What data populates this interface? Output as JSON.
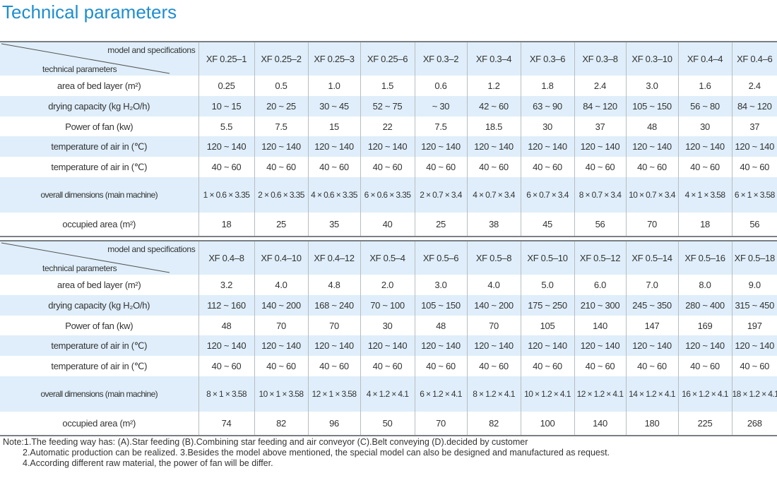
{
  "title": "Technical parameters",
  "corner": {
    "top": "model and specifications",
    "bottom": "technical parameters"
  },
  "row_labels": {
    "area": "area of bed layer (m²)",
    "capacity": "drying capacity (kg H₂O/h)",
    "fan": "Power of fan (kw)",
    "temp_in": "temperature of air in (℃)",
    "temp_out": "temperature of air in (℃)",
    "dims": "overall dimensions (main machine)",
    "occupied": "occupied area (m²)"
  },
  "table1": {
    "models": [
      "XF 0.25–1",
      "XF 0.25–2",
      "XF 0.25–3",
      "XF 0.25–6",
      "XF 0.3–2",
      "XF 0.3–4",
      "XF 0.3–6",
      "XF 0.3–8",
      "XF 0.3–10",
      "XF 0.4–4",
      "XF 0.4–6"
    ],
    "area": [
      "0.25",
      "0.5",
      "1.0",
      "1.5",
      "0.6",
      "1.2",
      "1.8",
      "2.4",
      "3.0",
      "1.6",
      "2.4"
    ],
    "capacity": [
      "10 ~ 15",
      "20 ~ 25",
      "30 ~ 45",
      "52 ~ 75",
      "~ 30",
      "42 ~ 60",
      "63 ~ 90",
      "84 ~ 120",
      "105 ~ 150",
      "56 ~ 80",
      "84 ~ 120"
    ],
    "fan": [
      "5.5",
      "7.5",
      "15",
      "22",
      "7.5",
      "18.5",
      "30",
      "37",
      "48",
      "30",
      "37"
    ],
    "temp_in": [
      "120 ~ 140",
      "120 ~ 140",
      "120 ~ 140",
      "120 ~ 140",
      "120 ~ 140",
      "120 ~ 140",
      "120 ~ 140",
      "120 ~ 140",
      "120 ~ 140",
      "120 ~ 140",
      "120 ~ 140"
    ],
    "temp_out": [
      "40 ~ 60",
      "40 ~ 60",
      "40 ~ 60",
      "40 ~ 60",
      "40 ~ 60",
      "40 ~ 60",
      "40 ~ 60",
      "40 ~ 60",
      "40 ~ 60",
      "40 ~ 60",
      "40 ~ 60"
    ],
    "dims": [
      "1 × 0.6 × 3.35",
      "2 × 0.6 × 3.35",
      "4 × 0.6 × 3.35",
      "6 × 0.6 × 3.35",
      "2 × 0.7 × 3.4",
      "4 × 0.7 × 3.4",
      "6 × 0.7 × 3.4",
      "8 × 0.7 × 3.4",
      "10 × 0.7 × 3.4",
      "4 × 1 × 3.58",
      "6 × 1 × 3.58"
    ],
    "occupied": [
      "18",
      "25",
      "35",
      "40",
      "25",
      "38",
      "45",
      "56",
      "70",
      "18",
      "56"
    ]
  },
  "table2": {
    "models": [
      "XF 0.4–8",
      "XF 0.4–10",
      "XF 0.4–12",
      "XF 0.5–4",
      "XF 0.5–6",
      "XF 0.5–8",
      "XF 0.5–10",
      "XF 0.5–12",
      "XF 0.5–14",
      "XF 0.5–16",
      "XF 0.5–18"
    ],
    "area": [
      "3.2",
      "4.0",
      "4.8",
      "2.0",
      "3.0",
      "4.0",
      "5.0",
      "6.0",
      "7.0",
      "8.0",
      "9.0"
    ],
    "capacity": [
      "112 ~ 160",
      "140 ~ 200",
      "168 ~ 240",
      "70 ~ 100",
      "105 ~ 150",
      "140 ~ 200",
      "175 ~ 250",
      "210 ~ 300",
      "245 ~ 350",
      "280 ~ 400",
      "315 ~ 450"
    ],
    "fan": [
      "48",
      "70",
      "70",
      "30",
      "48",
      "70",
      "105",
      "140",
      "147",
      "169",
      "197"
    ],
    "temp_in": [
      "120 ~ 140",
      "120 ~ 140",
      "120 ~ 140",
      "120 ~ 140",
      "120 ~ 140",
      "120 ~ 140",
      "120 ~ 140",
      "120 ~ 140",
      "120 ~ 140",
      "120 ~ 140",
      "120 ~ 140"
    ],
    "temp_out": [
      "40 ~ 60",
      "40 ~ 60",
      "40 ~ 60",
      "40 ~ 60",
      "40 ~ 60",
      "40 ~ 60",
      "40 ~ 60",
      "40 ~ 60",
      "40 ~ 60",
      "40 ~ 60",
      "40 ~ 60"
    ],
    "dims": [
      "8 × 1 × 3.58",
      "10 × 1 × 3.58",
      "12 × 1 × 3.58",
      "4 × 1.2 × 4.1",
      "6 × 1.2 × 4.1",
      "8 × 1.2 × 4.1",
      "10 × 1.2 × 4.1",
      "12 × 1.2 × 4.1",
      "14 × 1.2 × 4.1",
      "16 × 1.2 × 4.1",
      "18 × 1.2 × 4.1"
    ],
    "occupied": [
      "74",
      "82",
      "96",
      "50",
      "70",
      "82",
      "100",
      "140",
      "180",
      "225",
      "268"
    ]
  },
  "notes": [
    "Note:1.The feeding way has: (A).Star feeding  (B).Combining star feeding and air conveyor  (C).Belt conveying  (D).decided by customer",
    "2.Automatic production can be realized. 3.Besides the model above mentioned, the special model can also be designed and manufactured as request.",
    "4.According different raw material, the power of fan will be differ."
  ],
  "colors": {
    "title": "#1f8dcf",
    "shade": "#dfeefa",
    "grid": "#b8bcc0"
  }
}
